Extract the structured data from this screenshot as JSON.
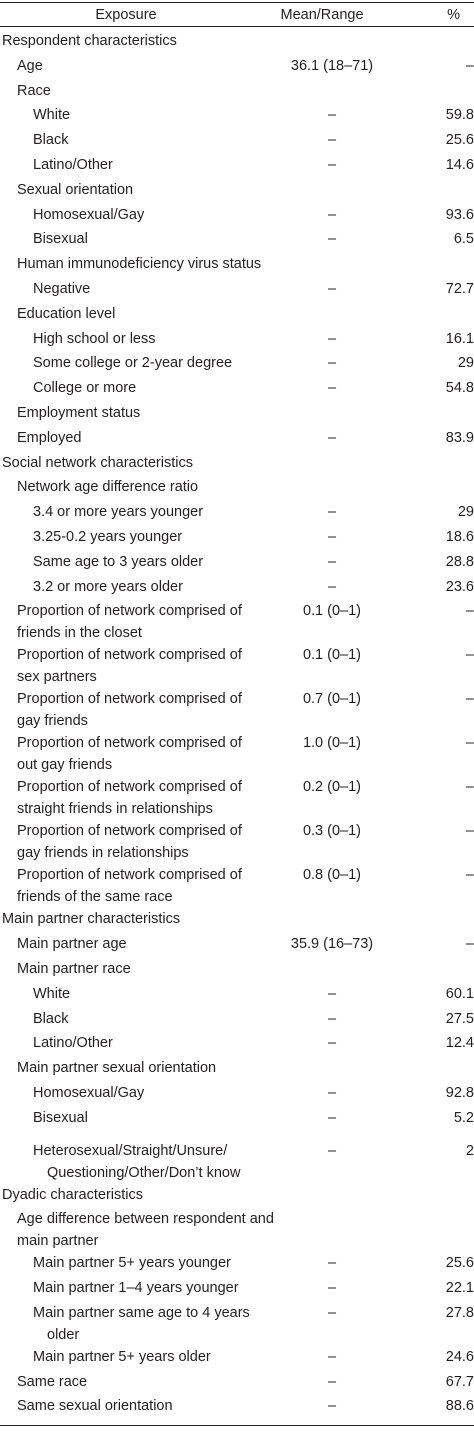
{
  "headers": {
    "exposure": "Exposure",
    "mean": "Mean/Range",
    "pct": "%"
  },
  "rows": [
    {
      "label": "Respondent characteristics",
      "mean": "",
      "pct": "",
      "level": 0
    },
    {
      "label": "Age",
      "mean": "36.1 (18–71)",
      "pct": "–",
      "level": 1
    },
    {
      "label": "Race",
      "mean": "",
      "pct": "",
      "level": 1
    },
    {
      "label": "White",
      "mean": "–",
      "pct": "59.8",
      "level": 2
    },
    {
      "label": "Black",
      "mean": "–",
      "pct": "25.6",
      "level": 2
    },
    {
      "label": "Latino/Other",
      "mean": "–",
      "pct": "14.6",
      "level": 2
    },
    {
      "label": "Sexual orientation",
      "mean": "",
      "pct": "",
      "level": 1
    },
    {
      "label": "Homosexual/Gay",
      "mean": "–",
      "pct": "93.6",
      "level": 2
    },
    {
      "label": "Bisexual",
      "mean": "–",
      "pct": "6.5",
      "level": 2
    },
    {
      "label": "Human immunodeficiency virus status",
      "mean": "",
      "pct": "",
      "level": 1
    },
    {
      "label": "Negative",
      "mean": "–",
      "pct": "72.7",
      "level": 2
    },
    {
      "label": "Education level",
      "mean": "",
      "pct": "",
      "level": 1
    },
    {
      "label": "High school or less",
      "mean": "–",
      "pct": "16.1",
      "level": 2
    },
    {
      "label": "Some college or 2-year degree",
      "mean": "–",
      "pct": "29",
      "level": 2
    },
    {
      "label": "College or more",
      "mean": "–",
      "pct": "54.8",
      "level": 2
    },
    {
      "label": "Employment status",
      "mean": "",
      "pct": "",
      "level": 1
    },
    {
      "label": "Employed",
      "mean": "–",
      "pct": "83.9",
      "level": 1
    },
    {
      "label": "Social network characteristics",
      "mean": "",
      "pct": "",
      "level": 0
    },
    {
      "label": "Network age difference ratio",
      "mean": "",
      "pct": "",
      "level": 1
    },
    {
      "label": "3.4 or more years younger",
      "mean": "–",
      "pct": "29",
      "level": 2
    },
    {
      "label": "3.25-0.2 years younger",
      "mean": "–",
      "pct": "18.6",
      "level": 2
    },
    {
      "label": "Same age to 3 years older",
      "mean": "–",
      "pct": "28.8",
      "level": 2
    },
    {
      "label": "3.2 or more years older",
      "mean": "–",
      "pct": "23.6",
      "level": 2
    },
    {
      "label": "Proportion of network comprised of",
      "label2": "friends in the closet",
      "mean": "0.1 (0–1)",
      "pct": "–",
      "level": 1
    },
    {
      "label": "Proportion of network comprised of",
      "label2": "sex partners",
      "mean": "0.1 (0–1)",
      "pct": "–",
      "level": 1
    },
    {
      "label": "Proportion of network comprised of",
      "label2": "gay friends",
      "mean": "0.7 (0–1)",
      "pct": "–",
      "level": 1
    },
    {
      "label": "Proportion of network comprised of",
      "label2": "out gay friends",
      "mean": "1.0 (0–1)",
      "pct": "–",
      "level": 1
    },
    {
      "label": "Proportion of network comprised of",
      "label2": "straight friends in relationships",
      "mean": "0.2 (0–1)",
      "pct": "–",
      "level": 1
    },
    {
      "label": "Proportion of network comprised of",
      "label2": "gay friends in relationships",
      "mean": "0.3 (0–1)",
      "pct": "–",
      "level": 1
    },
    {
      "label": "Proportion of network comprised of",
      "label2": "friends of the same race",
      "mean": "0.8 (0–1)",
      "pct": "–",
      "level": 1
    },
    {
      "label": "Main partner characteristics",
      "mean": "",
      "pct": "",
      "level": 0
    },
    {
      "label": "Main partner age",
      "mean": "35.9 (16–73)",
      "pct": "–",
      "level": 1
    },
    {
      "label": "Main partner race",
      "mean": "",
      "pct": "",
      "level": 1
    },
    {
      "label": "White",
      "mean": "–",
      "pct": "60.1",
      "level": 2
    },
    {
      "label": "Black",
      "mean": "–",
      "pct": "27.5",
      "level": 2
    },
    {
      "label": "Latino/Other",
      "mean": "–",
      "pct": "12.4",
      "level": 2
    },
    {
      "label": "Main partner sexual orientation",
      "mean": "",
      "pct": "",
      "level": 1
    },
    {
      "label": "Homosexual/Gay",
      "mean": "–",
      "pct": "92.8",
      "level": 2
    },
    {
      "label": "Bisexual",
      "mean": "–",
      "pct": "5.2",
      "level": 2
    },
    {
      "label": "Heterosexual/Straight/Unsure/",
      "label2": "Questioning/Other/Don’t know",
      "mean": "–",
      "pct": "2",
      "level": 2,
      "gap": true
    },
    {
      "label": "Dyadic characteristics",
      "mean": "",
      "pct": "",
      "level": 0
    },
    {
      "label": "Age difference between respondent and main partner",
      "mean": "",
      "pct": "",
      "level": 1
    },
    {
      "label": "Main partner 5+ years younger",
      "mean": "–",
      "pct": "25.6",
      "level": 2
    },
    {
      "label": "Main partner 1–4 years younger",
      "mean": "–",
      "pct": "22.1",
      "level": 2
    },
    {
      "label": "Main partner same age to 4 years",
      "label2": "older",
      "mean": "–",
      "pct": "27.8",
      "level": 2
    },
    {
      "label": "Main partner 5+ years older",
      "mean": "–",
      "pct": "24.6",
      "level": 2
    },
    {
      "label": "Same race",
      "mean": "–",
      "pct": "67.7",
      "level": 1
    },
    {
      "label": "Same sexual orientation",
      "mean": "–",
      "pct": "88.6",
      "level": 1
    }
  ]
}
